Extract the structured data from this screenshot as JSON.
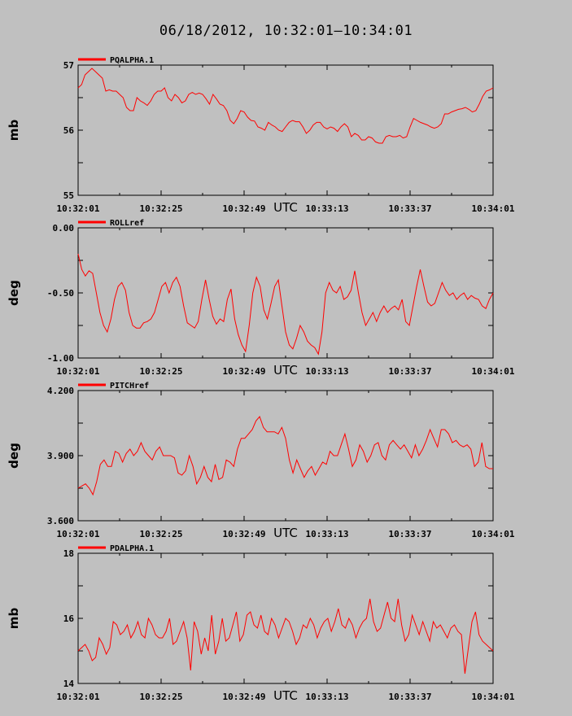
{
  "title": "06/18/2012, 10:32:01–10:34:01",
  "chart_data": [
    {
      "type": "line",
      "series": [
        {
          "name": "PQALPHA.1",
          "color": "#ff0000",
          "values": [
            56.65,
            56.7,
            56.85,
            56.9,
            56.95,
            56.9,
            56.85,
            56.8,
            56.6,
            56.62,
            56.6,
            56.6,
            56.55,
            56.5,
            56.35,
            56.3,
            56.3,
            56.5,
            56.45,
            56.42,
            56.38,
            56.45,
            56.55,
            56.6,
            56.6,
            56.65,
            56.5,
            56.45,
            56.55,
            56.5,
            56.42,
            56.45,
            56.55,
            56.58,
            56.55,
            56.57,
            56.55,
            56.48,
            56.4,
            56.55,
            56.48,
            56.4,
            56.38,
            56.3,
            56.15,
            56.1,
            56.18,
            56.3,
            56.28,
            56.2,
            56.15,
            56.14,
            56.05,
            56.03,
            56.0,
            56.12,
            56.08,
            56.05,
            56.0,
            55.98,
            56.05,
            56.12,
            56.15,
            56.13,
            56.13,
            56.05,
            55.95,
            56.0,
            56.08,
            56.12,
            56.12,
            56.05,
            56.02,
            56.05,
            56.03,
            55.98,
            56.05,
            56.1,
            56.05,
            55.9,
            55.95,
            55.92,
            55.85,
            55.85,
            55.9,
            55.88,
            55.82,
            55.8,
            55.8,
            55.9,
            55.92,
            55.9,
            55.9,
            55.92,
            55.88,
            55.9,
            56.05,
            56.18,
            56.15,
            56.12,
            56.1,
            56.08,
            56.05,
            56.03,
            56.05,
            56.1,
            56.25,
            56.25,
            56.28,
            56.3,
            56.32,
            56.33,
            56.35,
            56.32,
            56.28,
            56.3,
            56.4,
            56.52,
            56.6,
            56.62,
            56.65
          ]
        }
      ],
      "ylabel": "mb",
      "xlabel": "UTC",
      "ylim": [
        55,
        57
      ],
      "yticks": [
        "55",
        "56",
        "57"
      ],
      "xticks": [
        "10:32:01",
        "10:32:25",
        "10:32:49",
        "10:33:13",
        "10:33:37",
        "10:34:01"
      ]
    },
    {
      "type": "line",
      "series": [
        {
          "name": "ROLLref",
          "color": "#ff0000",
          "values": [
            -0.2,
            -0.32,
            -0.37,
            -0.33,
            -0.35,
            -0.5,
            -0.65,
            -0.75,
            -0.8,
            -0.7,
            -0.55,
            -0.45,
            -0.42,
            -0.48,
            -0.65,
            -0.75,
            -0.77,
            -0.77,
            -0.73,
            -0.72,
            -0.7,
            -0.65,
            -0.55,
            -0.45,
            -0.42,
            -0.5,
            -0.42,
            -0.38,
            -0.45,
            -0.6,
            -0.73,
            -0.75,
            -0.77,
            -0.72,
            -0.55,
            -0.4,
            -0.55,
            -0.68,
            -0.74,
            -0.7,
            -0.72,
            -0.55,
            -0.47,
            -0.7,
            -0.82,
            -0.9,
            -0.95,
            -0.75,
            -0.5,
            -0.38,
            -0.45,
            -0.63,
            -0.7,
            -0.58,
            -0.45,
            -0.4,
            -0.6,
            -0.8,
            -0.9,
            -0.93,
            -0.85,
            -0.75,
            -0.8,
            -0.87,
            -0.9,
            -0.92,
            -0.97,
            -0.8,
            -0.5,
            -0.42,
            -0.48,
            -0.5,
            -0.45,
            -0.55,
            -0.53,
            -0.48,
            -0.33,
            -0.5,
            -0.65,
            -0.75,
            -0.7,
            -0.65,
            -0.72,
            -0.65,
            -0.6,
            -0.65,
            -0.62,
            -0.6,
            -0.63,
            -0.55,
            -0.72,
            -0.75,
            -0.6,
            -0.45,
            -0.32,
            -0.45,
            -0.57,
            -0.6,
            -0.58,
            -0.5,
            -0.42,
            -0.48,
            -0.52,
            -0.5,
            -0.55,
            -0.52,
            -0.5,
            -0.55,
            -0.52,
            -0.54,
            -0.55,
            -0.6,
            -0.62,
            -0.55,
            -0.5
          ]
        }
      ],
      "ylabel": "deg",
      "xlabel": "UTC",
      "ylim": [
        -1.0,
        0.0
      ],
      "yticks": [
        "-1.00",
        "-0.50",
        "0.00"
      ],
      "xticks": [
        "10:32:01",
        "10:32:25",
        "10:32:49",
        "10:33:13",
        "10:33:37",
        "10:34:01"
      ]
    },
    {
      "type": "line",
      "series": [
        {
          "name": "PITCHref",
          "color": "#ff0000",
          "values": [
            3.75,
            3.76,
            3.77,
            3.75,
            3.72,
            3.78,
            3.86,
            3.88,
            3.85,
            3.85,
            3.92,
            3.91,
            3.87,
            3.91,
            3.93,
            3.9,
            3.92,
            3.96,
            3.92,
            3.9,
            3.88,
            3.92,
            3.94,
            3.9,
            3.9,
            3.9,
            3.89,
            3.82,
            3.81,
            3.83,
            3.9,
            3.85,
            3.77,
            3.8,
            3.85,
            3.8,
            3.78,
            3.86,
            3.79,
            3.8,
            3.88,
            3.87,
            3.85,
            3.93,
            3.98,
            3.98,
            4.0,
            4.02,
            4.06,
            4.08,
            4.03,
            4.01,
            4.01,
            4.01,
            4.0,
            4.03,
            3.98,
            3.88,
            3.82,
            3.88,
            3.84,
            3.8,
            3.83,
            3.85,
            3.81,
            3.84,
            3.87,
            3.86,
            3.92,
            3.9,
            3.9,
            3.95,
            4.0,
            3.93,
            3.85,
            3.88,
            3.95,
            3.92,
            3.87,
            3.9,
            3.95,
            3.96,
            3.9,
            3.88,
            3.95,
            3.97,
            3.95,
            3.93,
            3.95,
            3.92,
            3.89,
            3.95,
            3.9,
            3.93,
            3.97,
            4.02,
            3.98,
            3.94,
            4.02,
            4.02,
            4.0,
            3.96,
            3.97,
            3.95,
            3.94,
            3.95,
            3.93,
            3.85,
            3.87,
            3.96,
            3.85,
            3.84,
            3.84
          ]
        }
      ],
      "ylabel": "deg",
      "xlabel": "UTC",
      "ylim": [
        3.6,
        4.2
      ],
      "yticks": [
        "3.600",
        "3.900",
        "4.200"
      ],
      "xticks": [
        "10:32:01",
        "10:32:25",
        "10:32:49",
        "10:33:13",
        "10:33:37",
        "10:34:01"
      ]
    },
    {
      "type": "line",
      "series": [
        {
          "name": "PDALPHA.1",
          "color": "#ff0000",
          "values": [
            15.0,
            15.1,
            15.2,
            15.0,
            14.7,
            14.8,
            15.4,
            15.2,
            14.9,
            15.1,
            15.9,
            15.8,
            15.5,
            15.6,
            15.8,
            15.4,
            15.6,
            15.9,
            15.5,
            15.4,
            16.0,
            15.8,
            15.5,
            15.4,
            15.4,
            15.6,
            16.0,
            15.2,
            15.3,
            15.6,
            15.9,
            15.4,
            14.4,
            15.9,
            15.6,
            14.9,
            15.4,
            15.0,
            16.1,
            14.9,
            15.3,
            16.0,
            15.3,
            15.4,
            15.8,
            16.2,
            15.3,
            15.5,
            16.1,
            16.2,
            15.8,
            15.7,
            16.1,
            15.6,
            15.5,
            16.0,
            15.8,
            15.4,
            15.7,
            16.0,
            15.9,
            15.6,
            15.2,
            15.4,
            15.8,
            15.7,
            16.0,
            15.8,
            15.4,
            15.7,
            15.9,
            16.0,
            15.6,
            15.9,
            16.3,
            15.8,
            15.7,
            16.0,
            15.8,
            15.4,
            15.7,
            15.9,
            16.0,
            16.6,
            15.9,
            15.6,
            15.7,
            16.1,
            16.5,
            16.0,
            15.9,
            16.6,
            15.8,
            15.3,
            15.5,
            16.1,
            15.8,
            15.5,
            15.9,
            15.6,
            15.3,
            15.9,
            15.7,
            15.8,
            15.6,
            15.4,
            15.7,
            15.8,
            15.6,
            15.5,
            14.3,
            15.1,
            15.9,
            16.2,
            15.5,
            15.3,
            15.2,
            15.1,
            15.0
          ]
        }
      ],
      "ylabel": "mb",
      "xlabel": "UTC",
      "ylim": [
        14,
        18
      ],
      "yticks": [
        "14",
        "16",
        "18"
      ],
      "xticks": [
        "10:32:01",
        "10:32:25",
        "10:32:49",
        "10:33:13",
        "10:33:37",
        "10:34:01"
      ]
    }
  ]
}
